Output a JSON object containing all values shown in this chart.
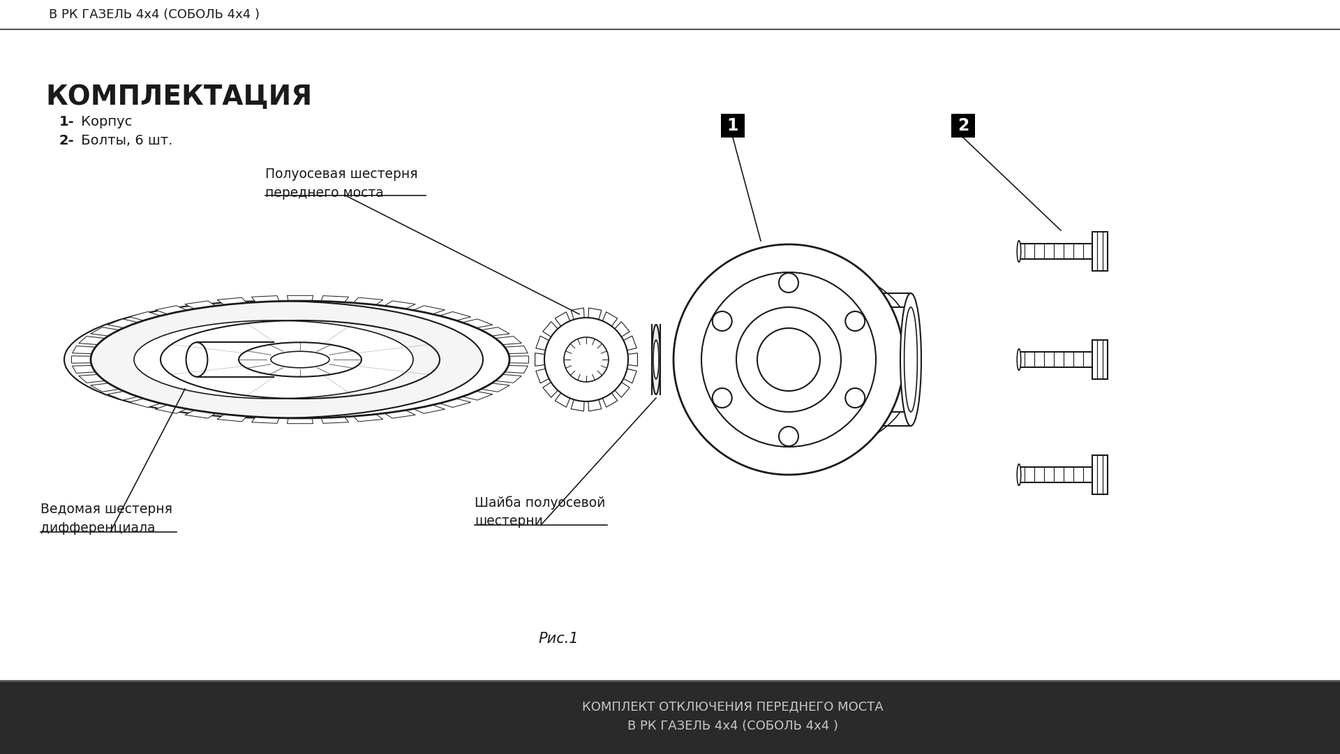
{
  "bg_color": "#d8d8d8",
  "main_bg": "#ffffff",
  "header_text": "В РК ГАЗЕЛЬ 4x4 (СОБОЛЬ 4x4 )",
  "title": "КОМПЛЕКТАЦИЯ",
  "item1_bold": "1-",
  "item1_text": " Корпус",
  "item2_bold": "2-",
  "item2_text": " Болты, 6 шт.",
  "label_poluo_shest": "Полуосевая шестерня\nпереднего моста",
  "label_vedom_shest": "Ведомая шестерня\nдифференциала",
  "label_shayba": "Шайба полуосевой\nшестерни",
  "label_ris": "Рис.1",
  "num1_label": "1",
  "num2_label": "2",
  "footer_line1": "КОМПЛЕКТ ОТКЛЮЧЕНИЯ ПЕРЕДНЕГО МОСТА",
  "footer_line2": "В РК ГАЗЕЛЬ 4x4 (СОБОЛЬ 4x4 )",
  "line_color": "#1a1a1a",
  "text_color": "#1a1a1a",
  "footer_bg": "#2a2a2a",
  "footer_text_color": "#c8c8c8"
}
